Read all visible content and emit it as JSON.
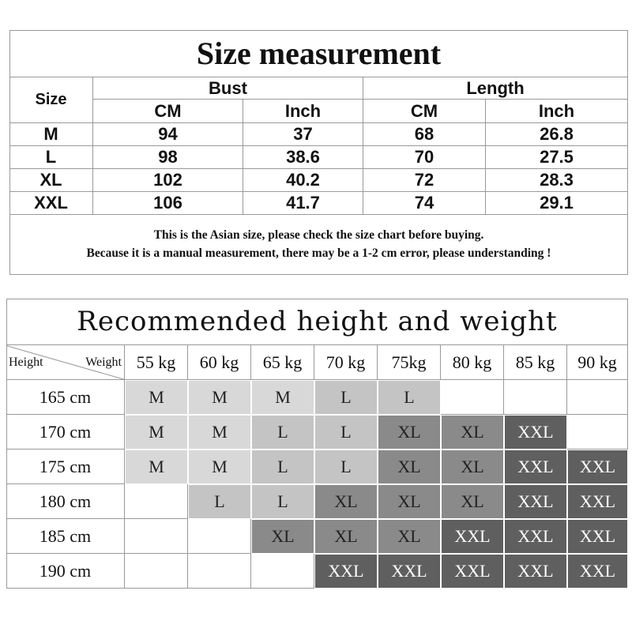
{
  "size_table": {
    "title": "Size measurement",
    "size_header": "Size",
    "groups": [
      "Bust",
      "Length"
    ],
    "units": [
      "CM",
      "Inch",
      "CM",
      "Inch"
    ],
    "rows": [
      [
        "M",
        94,
        37,
        68,
        26.8
      ],
      [
        "L",
        98,
        38.6,
        70,
        27.5
      ],
      [
        "XL",
        102,
        40.2,
        72,
        28.3
      ],
      [
        "XXL",
        106,
        41.7,
        74,
        29.1
      ]
    ],
    "notes": [
      "This is the Asian size, please check the size chart before buying.",
      "Because it is a manual measurement, there may be a 1-2 cm error, please understanding !"
    ]
  },
  "recommend_table": {
    "title": "Recommended height and weight",
    "corner": {
      "height": "Height",
      "weight": "Weight"
    },
    "weights": [
      "55 kg",
      "60 kg",
      "65 kg",
      "70 kg",
      "75kg",
      "80 kg",
      "85 kg",
      "90 kg"
    ],
    "rows": [
      {
        "height": "165 cm",
        "sizes": [
          "M",
          "M",
          "M",
          "L",
          "L",
          null,
          null,
          null
        ]
      },
      {
        "height": "170 cm",
        "sizes": [
          "M",
          "M",
          "L",
          "L",
          "XL",
          "XL",
          "XXL",
          null
        ]
      },
      {
        "height": "175 cm",
        "sizes": [
          "M",
          "M",
          "L",
          "L",
          "XL",
          "XL",
          "XXL",
          "XXL"
        ]
      },
      {
        "height": "180 cm",
        "sizes": [
          null,
          "L",
          "L",
          "XL",
          "XL",
          "XL",
          "XXL",
          "XXL"
        ]
      },
      {
        "height": "185 cm",
        "sizes": [
          null,
          null,
          "XL",
          "XL",
          "XL",
          "XXL",
          "XXL",
          "XXL"
        ]
      },
      {
        "height": "190 cm",
        "sizes": [
          null,
          null,
          null,
          "XXL",
          "XXL",
          "XXL",
          "XXL",
          "XXL"
        ]
      }
    ],
    "cell_colors": {
      "M": "#d8d8d8",
      "L": "#c4c4c4",
      "XL": "#8a8a8a",
      "XXL": "#5f5f5f"
    },
    "text_colors": {
      "M": "#222222",
      "L": "#222222",
      "XL": "#222222",
      "XXL": "#ffffff"
    }
  }
}
